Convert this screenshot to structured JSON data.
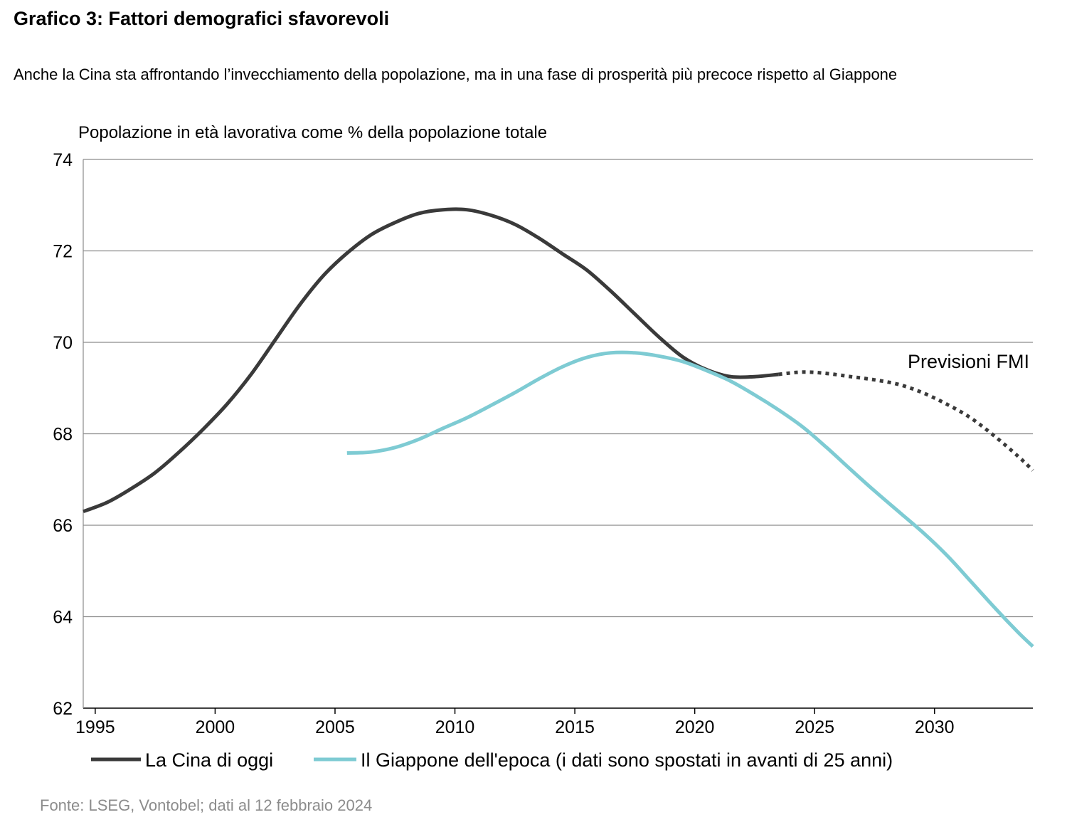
{
  "title": "Grafico 3: Fattori demografici sfavorevoli",
  "subtitle": "Anche la Cina sta affrontando l’invecchiamento della popolazione, ma in una fase di prosperità più precoce rispetto al Giappone",
  "source": "Fonte: LSEG, Vontobel; dati al 12 febbraio 2024",
  "colors": {
    "china": "#3a3a3a",
    "japan": "#7ecbd3",
    "grid": "#8c8c8c",
    "axis": "#000000",
    "source_text": "#8c8c8c"
  },
  "chart_data": {
    "type": "line",
    "title": "",
    "ylabel": "Popolazione in età lavorativa come % della popolazione totale",
    "xlabel": "",
    "ylim": [
      62,
      74
    ],
    "xlim": [
      1994.5,
      2034.1
    ],
    "yticks": [
      62,
      64,
      66,
      68,
      70,
      72,
      74
    ],
    "xticks": [
      1995,
      2000,
      2005,
      2010,
      2015,
      2020,
      2025,
      2030
    ],
    "grid": "horizontal",
    "legend_position": "bottom",
    "annotation": "Previsioni FMI",
    "series": [
      {
        "name": "La Cina di oggi",
        "color": "#3a3a3a",
        "style": "solid",
        "points": [
          [
            1994.5,
            66.3
          ],
          [
            1995.5,
            66.5
          ],
          [
            1996.5,
            66.8
          ],
          [
            1997.5,
            67.15
          ],
          [
            1998.5,
            67.6
          ],
          [
            1999.5,
            68.1
          ],
          [
            2000.5,
            68.65
          ],
          [
            2001.5,
            69.3
          ],
          [
            2002.5,
            70.05
          ],
          [
            2003.5,
            70.8
          ],
          [
            2004.5,
            71.45
          ],
          [
            2005.5,
            71.95
          ],
          [
            2006.5,
            72.35
          ],
          [
            2007.5,
            72.62
          ],
          [
            2008.5,
            72.82
          ],
          [
            2009.5,
            72.9
          ],
          [
            2010.5,
            72.9
          ],
          [
            2011.5,
            72.78
          ],
          [
            2012.5,
            72.58
          ],
          [
            2013.5,
            72.28
          ],
          [
            2014.5,
            71.93
          ],
          [
            2015.5,
            71.58
          ],
          [
            2016.5,
            71.12
          ],
          [
            2017.5,
            70.62
          ],
          [
            2018.5,
            70.12
          ],
          [
            2019.5,
            69.68
          ],
          [
            2020.5,
            69.4
          ],
          [
            2021.5,
            69.25
          ],
          [
            2022.5,
            69.25
          ],
          [
            2023.5,
            69.3
          ]
        ]
      },
      {
        "name": "Previsioni FMI",
        "color": "#3a3a3a",
        "style": "dotted",
        "points": [
          [
            2023.5,
            69.3
          ],
          [
            2024.5,
            69.35
          ],
          [
            2025.5,
            69.32
          ],
          [
            2026.5,
            69.25
          ],
          [
            2027.5,
            69.18
          ],
          [
            2028.5,
            69.08
          ],
          [
            2029.5,
            68.9
          ],
          [
            2030.5,
            68.65
          ],
          [
            2031.5,
            68.35
          ],
          [
            2032.5,
            67.95
          ],
          [
            2033.5,
            67.5
          ],
          [
            2034.1,
            67.2
          ]
        ]
      },
      {
        "name": "Il Giappone dell'epoca (i dati sono spostati in avanti di 25 anni)",
        "color": "#7ecbd3",
        "style": "solid",
        "points": [
          [
            2005.5,
            67.58
          ],
          [
            2006.5,
            67.6
          ],
          [
            2007.5,
            67.7
          ],
          [
            2008.5,
            67.88
          ],
          [
            2009.5,
            68.12
          ],
          [
            2010.5,
            68.35
          ],
          [
            2011.5,
            68.62
          ],
          [
            2012.5,
            68.9
          ],
          [
            2013.5,
            69.2
          ],
          [
            2014.5,
            69.47
          ],
          [
            2015.5,
            69.67
          ],
          [
            2016.5,
            69.77
          ],
          [
            2017.5,
            69.77
          ],
          [
            2018.5,
            69.7
          ],
          [
            2019.5,
            69.58
          ],
          [
            2020.5,
            69.38
          ],
          [
            2021.5,
            69.15
          ],
          [
            2022.5,
            68.85
          ],
          [
            2023.5,
            68.52
          ],
          [
            2024.5,
            68.15
          ],
          [
            2025.5,
            67.7
          ],
          [
            2026.5,
            67.22
          ],
          [
            2027.5,
            66.75
          ],
          [
            2028.5,
            66.3
          ],
          [
            2029.5,
            65.85
          ],
          [
            2030.5,
            65.35
          ],
          [
            2031.5,
            64.78
          ],
          [
            2032.5,
            64.2
          ],
          [
            2033.5,
            63.65
          ],
          [
            2034.1,
            63.35
          ]
        ]
      }
    ],
    "legend": [
      {
        "label": "La Cina di oggi",
        "color": "#3a3a3a"
      },
      {
        "label": "Il Giappone dell'epoca (i dati sono spostati in avanti di 25 anni)",
        "color": "#7ecbd3"
      }
    ]
  }
}
